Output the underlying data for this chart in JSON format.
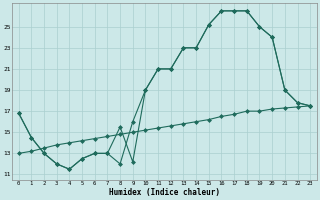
{
  "xlabel": "Humidex (Indice chaleur)",
  "background_color": "#cce8e8",
  "grid_color": "#aacfcf",
  "line_color": "#1f6b5c",
  "xlim": [
    -0.5,
    23.5
  ],
  "ylim": [
    10.5,
    27.2
  ],
  "xticks": [
    0,
    1,
    2,
    3,
    4,
    5,
    6,
    7,
    8,
    9,
    10,
    11,
    12,
    13,
    14,
    15,
    16,
    17,
    18,
    19,
    20,
    21,
    22,
    23
  ],
  "yticks": [
    11,
    13,
    15,
    17,
    19,
    21,
    23,
    25
  ],
  "line1_x": [
    0,
    1,
    2,
    3,
    4,
    5,
    6,
    7,
    8,
    9,
    10,
    11,
    12,
    13,
    14,
    15,
    16,
    17,
    18,
    19,
    20,
    21,
    22,
    23
  ],
  "line1_y": [
    16.8,
    14.5,
    13.0,
    12.0,
    11.5,
    12.5,
    13.0,
    13.0,
    12.0,
    16.0,
    19.0,
    21.0,
    21.0,
    23.0,
    23.0,
    25.2,
    26.5,
    26.5,
    26.5,
    25.0,
    24.0,
    19.0,
    17.8,
    17.5
  ],
  "line2_x": [
    0,
    1,
    2,
    3,
    4,
    5,
    6,
    7,
    8,
    9,
    10,
    11,
    12,
    13,
    14,
    15,
    16,
    17,
    18,
    19,
    20,
    21,
    22,
    23
  ],
  "line2_y": [
    16.8,
    14.5,
    13.0,
    12.0,
    11.5,
    12.5,
    13.0,
    13.0,
    15.5,
    12.2,
    19.0,
    21.0,
    21.0,
    23.0,
    23.0,
    25.2,
    26.5,
    26.5,
    26.5,
    25.0,
    24.0,
    19.0,
    17.8,
    17.5
  ],
  "line3_x": [
    0,
    1,
    2,
    3,
    4,
    5,
    6,
    7,
    8,
    9,
    10,
    11,
    12,
    13,
    14,
    15,
    16,
    17,
    18,
    19,
    20,
    21,
    22,
    23
  ],
  "line3_y": [
    13.0,
    13.2,
    13.5,
    13.8,
    14.0,
    14.2,
    14.4,
    14.6,
    14.8,
    15.0,
    15.2,
    15.4,
    15.6,
    15.8,
    16.0,
    16.2,
    16.5,
    16.7,
    17.0,
    17.0,
    17.2,
    17.3,
    17.4,
    17.5
  ]
}
